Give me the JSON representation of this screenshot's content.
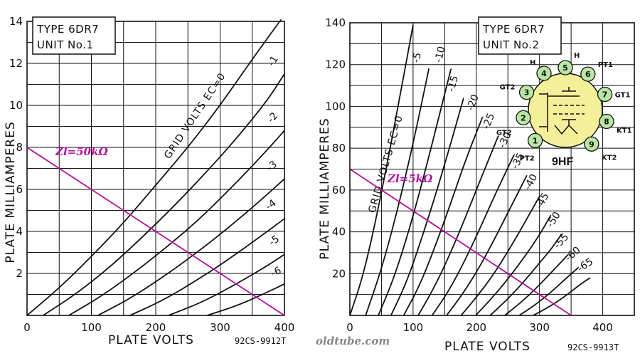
{
  "chart_data": [
    {
      "type": "line",
      "title_lines": [
        "TYPE 6DR7",
        "UNIT No.1"
      ],
      "xlabel": "PLATE VOLTS",
      "ylabel": "PLATE MILLIAMPERES",
      "xlim": [
        0,
        400
      ],
      "ylim": [
        0,
        14
      ],
      "xticks": [
        0,
        100,
        200,
        300,
        400
      ],
      "yticks": [
        2,
        4,
        6,
        8,
        10,
        12,
        14
      ],
      "grid": true,
      "figure_code": "92CS-9912T",
      "grid_volts_label": "GRID VOLTS EC=0",
      "series": [
        {
          "name": "0",
          "x": [
            0,
            50,
            100,
            150,
            200,
            250,
            300,
            350,
            395
          ],
          "y": [
            0,
            1.3,
            2.8,
            4.4,
            6.2,
            8.0,
            10.0,
            12.2,
            14.1
          ]
        },
        {
          "name": "-1",
          "x": [
            25,
            75,
            125,
            175,
            225,
            275,
            325,
            375,
            400
          ],
          "y": [
            0,
            1.0,
            2.2,
            3.6,
            5.1,
            6.7,
            8.4,
            10.3,
            11.5
          ]
        },
        {
          "name": "-2",
          "x": [
            65,
            115,
            165,
            215,
            265,
            315,
            365,
            400
          ],
          "y": [
            0,
            0.9,
            2.0,
            3.2,
            4.5,
            6.0,
            7.6,
            8.8
          ]
        },
        {
          "name": "-3",
          "x": [
            110,
            160,
            210,
            260,
            310,
            360,
            400
          ],
          "y": [
            0,
            0.8,
            1.8,
            2.9,
            4.1,
            5.4,
            6.5
          ]
        },
        {
          "name": "-4",
          "x": [
            160,
            210,
            260,
            310,
            360,
            400
          ],
          "y": [
            0,
            0.7,
            1.6,
            2.6,
            3.7,
            4.6
          ]
        },
        {
          "name": "-5",
          "x": [
            220,
            270,
            320,
            370,
            400
          ],
          "y": [
            0,
            0.6,
            1.4,
            2.3,
            2.9
          ]
        },
        {
          "name": "-6",
          "x": [
            280,
            330,
            380,
            400
          ],
          "y": [
            0,
            0.5,
            1.2,
            1.5
          ]
        }
      ],
      "load_line": {
        "label": "Zl=50kΩ",
        "x": [
          0,
          400
        ],
        "y": [
          8,
          0
        ]
      }
    },
    {
      "type": "line",
      "title_lines": [
        "TYPE 6DR7",
        "UNIT No.2"
      ],
      "xlabel": "PLATE VOLTS",
      "ylabel": "PLATE MILLIAMPERES",
      "xlim": [
        0,
        450
      ],
      "ylim": [
        0,
        140
      ],
      "xticks": [
        0,
        100,
        200,
        300,
        400
      ],
      "yticks": [
        20,
        40,
        60,
        80,
        100,
        120,
        140
      ],
      "grid": true,
      "figure_code": "92CS-9913T",
      "grid_volts_label": "GRID VOLTS EC=0",
      "series": [
        {
          "name": "0",
          "x": [
            0,
            20,
            40,
            60,
            80,
            100
          ],
          "y": [
            0,
            18,
            44,
            74,
            106,
            139
          ]
        },
        {
          "name": "-5",
          "x": [
            25,
            50,
            75,
            100,
            125
          ],
          "y": [
            0,
            22,
            50,
            82,
            118
          ]
        },
        {
          "name": "-10",
          "x": [
            45,
            70,
            95,
            120,
            145,
            160
          ],
          "y": [
            0,
            18,
            42,
            70,
            100,
            118
          ]
        },
        {
          "name": "-15",
          "x": [
            65,
            90,
            115,
            140,
            165,
            180
          ],
          "y": [
            0,
            16,
            38,
            62,
            88,
            104
          ]
        },
        {
          "name": "-20",
          "x": [
            85,
            110,
            135,
            160,
            185,
            210
          ],
          "y": [
            0,
            14,
            33,
            54,
            76,
            95
          ]
        },
        {
          "name": "-25",
          "x": [
            108,
            133,
            158,
            183,
            208,
            235
          ],
          "y": [
            0,
            13,
            29,
            47,
            66,
            86
          ]
        },
        {
          "name": "-30",
          "x": [
            130,
            155,
            180,
            205,
            230,
            260
          ],
          "y": [
            0,
            11,
            25,
            41,
            58,
            77
          ]
        },
        {
          "name": "-35",
          "x": [
            153,
            178,
            203,
            228,
            253,
            280
          ],
          "y": [
            0,
            10,
            22,
            36,
            51,
            67
          ]
        },
        {
          "name": "-40",
          "x": [
            176,
            201,
            226,
            251,
            276,
            300
          ],
          "y": [
            0,
            9,
            19,
            31,
            44,
            57
          ]
        },
        {
          "name": "-45",
          "x": [
            199,
            224,
            249,
            274,
            299,
            318
          ],
          "y": [
            0,
            8,
            17,
            27,
            38,
            48
          ]
        },
        {
          "name": "-50",
          "x": [
            222,
            247,
            272,
            297,
            322,
            335
          ],
          "y": [
            0,
            7,
            15,
            24,
            33,
            39
          ]
        },
        {
          "name": "-55",
          "x": [
            245,
            270,
            295,
            320,
            345
          ],
          "y": [
            0,
            6,
            13,
            21,
            29
          ]
        },
        {
          "name": "-60",
          "x": [
            268,
            293,
            318,
            343,
            362
          ],
          "y": [
            0,
            5,
            11,
            18,
            23
          ]
        },
        {
          "name": "-65",
          "x": [
            290,
            315,
            340,
            365,
            380
          ],
          "y": [
            0,
            4,
            9,
            15,
            18
          ]
        }
      ],
      "load_line": {
        "label": "Zl=5kΩ",
        "x": [
          0,
          350
        ],
        "y": [
          70,
          0
        ]
      },
      "basing": {
        "base_code": "9HF",
        "pins": [
          {
            "num": "1",
            "label": "PT2"
          },
          {
            "num": "2",
            "label": "GT2"
          },
          {
            "num": "3",
            "label": "GT2"
          },
          {
            "num": "4",
            "label": "H"
          },
          {
            "num": "5",
            "label": "H"
          },
          {
            "num": "6",
            "label": "PT1"
          },
          {
            "num": "7",
            "label": "GT1"
          },
          {
            "num": "8",
            "label": "KT1"
          },
          {
            "num": "9",
            "label": "KT2"
          }
        ]
      }
    }
  ],
  "watermark": "oldtube.com",
  "colors": {
    "grid": "#111111",
    "curve": "#111111",
    "load_line": "#b0119e",
    "pin_fill": "#b9e6a5",
    "envelope_fill": "#f6ef9a"
  }
}
